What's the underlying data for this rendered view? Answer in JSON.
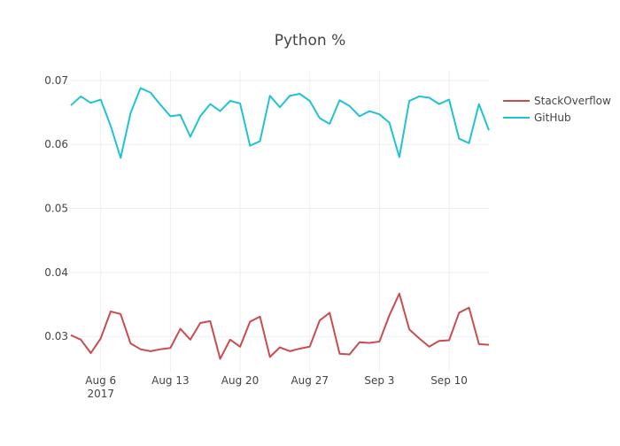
{
  "chart_data": {
    "type": "line",
    "title": "Python %",
    "xlabel": "",
    "ylabel": "",
    "x_range": [
      "2017-08-03",
      "2017-09-14"
    ],
    "ylim": [
      0.0245,
      0.0715
    ],
    "x_ticks": [
      {
        "date": "2017-08-06",
        "label": "Aug 6",
        "sublabel": "2017"
      },
      {
        "date": "2017-08-13",
        "label": "Aug 13",
        "sublabel": ""
      },
      {
        "date": "2017-08-20",
        "label": "Aug 20",
        "sublabel": ""
      },
      {
        "date": "2017-08-27",
        "label": "Aug 27",
        "sublabel": ""
      },
      {
        "date": "2017-09-03",
        "label": "Sep 3",
        "sublabel": ""
      },
      {
        "date": "2017-09-10",
        "label": "Sep 10",
        "sublabel": ""
      }
    ],
    "y_ticks": [
      {
        "value": 0.03,
        "label": "0.03"
      },
      {
        "value": 0.04,
        "label": "0.04"
      },
      {
        "value": 0.05,
        "label": "0.05"
      },
      {
        "value": 0.06,
        "label": "0.06"
      },
      {
        "value": 0.07,
        "label": "0.07"
      }
    ],
    "grid": true,
    "legend_position": "top-right",
    "x": [
      "2017-08-03",
      "2017-08-04",
      "2017-08-05",
      "2017-08-06",
      "2017-08-07",
      "2017-08-08",
      "2017-08-09",
      "2017-08-10",
      "2017-08-11",
      "2017-08-12",
      "2017-08-13",
      "2017-08-14",
      "2017-08-15",
      "2017-08-16",
      "2017-08-17",
      "2017-08-18",
      "2017-08-19",
      "2017-08-20",
      "2017-08-21",
      "2017-08-22",
      "2017-08-23",
      "2017-08-24",
      "2017-08-25",
      "2017-08-26",
      "2017-08-27",
      "2017-08-28",
      "2017-08-29",
      "2017-08-30",
      "2017-08-31",
      "2017-09-01",
      "2017-09-02",
      "2017-09-03",
      "2017-09-04",
      "2017-09-05",
      "2017-09-06",
      "2017-09-07",
      "2017-09-08",
      "2017-09-09",
      "2017-09-10",
      "2017-09-11",
      "2017-09-12",
      "2017-09-13",
      "2017-09-14"
    ],
    "series": [
      {
        "name": "StackOverflow",
        "color": "#c94c50",
        "values": [
          0.0302,
          0.0295,
          0.0274,
          0.0297,
          0.0339,
          0.0335,
          0.0289,
          0.028,
          0.0277,
          0.028,
          0.0282,
          0.0312,
          0.0295,
          0.0321,
          0.0324,
          0.0265,
          0.0295,
          0.0284,
          0.0323,
          0.0331,
          0.0268,
          0.0283,
          0.0277,
          0.0281,
          0.0284,
          0.0325,
          0.0337,
          0.0273,
          0.0272,
          0.0291,
          0.029,
          0.0292,
          0.0333,
          0.0367,
          0.0311,
          0.0297,
          0.0284,
          0.0293,
          0.0294,
          0.0337,
          0.0345,
          0.0288,
          0.0287
        ]
      },
      {
        "name": "GitHub",
        "color": "#1fc3d3",
        "values": [
          0.0661,
          0.0675,
          0.0665,
          0.067,
          0.0629,
          0.0579,
          0.0649,
          0.0688,
          0.0681,
          0.0662,
          0.0644,
          0.0646,
          0.0612,
          0.0644,
          0.0663,
          0.0652,
          0.0668,
          0.0664,
          0.0598,
          0.0605,
          0.0676,
          0.0658,
          0.0676,
          0.0679,
          0.0668,
          0.0641,
          0.0632,
          0.0669,
          0.066,
          0.0644,
          0.0652,
          0.0647,
          0.0634,
          0.058,
          0.0668,
          0.0675,
          0.0673,
          0.0663,
          0.067,
          0.0609,
          0.0602,
          0.0663,
          0.0622
        ]
      }
    ]
  }
}
